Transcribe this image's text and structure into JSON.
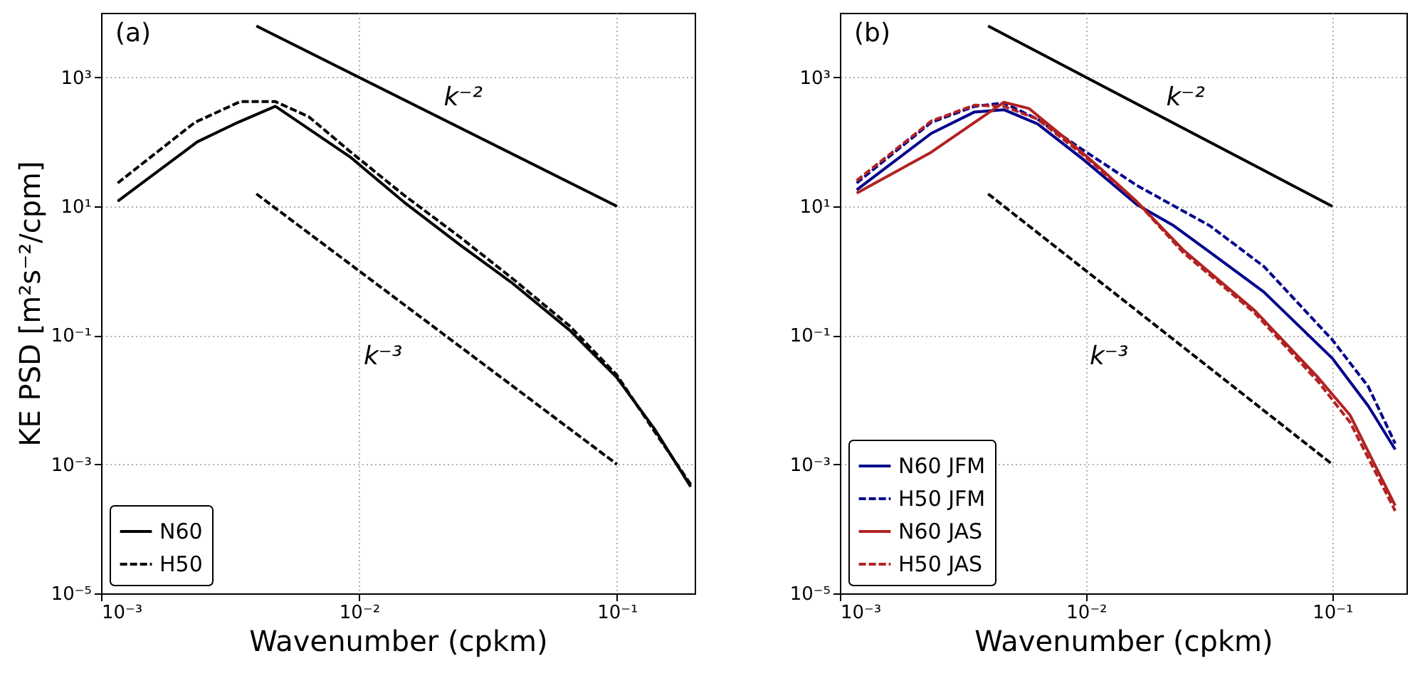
{
  "chart_data": [
    {
      "type": "line",
      "xlabel": "Wavenumber (cpkm)",
      "ylabel": "KE PSD [m²s⁻²/cpm]",
      "log": "xy",
      "grid": true,
      "legend": "bottom left",
      "xlim": [
        0.001,
        0.2
      ],
      "xticks": [
        {
          "value": 0.001,
          "label": "10⁻³"
        },
        {
          "value": 0.01,
          "label": "10⁻²"
        },
        {
          "value": 0.1,
          "label": "10⁻¹"
        }
      ],
      "ylim": [
        1e-05,
        10000
      ],
      "yticks": [
        {
          "value": 1e-05,
          "label": "10⁻⁵"
        },
        {
          "value": 0.001,
          "label": "10⁻³"
        },
        {
          "value": 0.1,
          "label": "10⁻¹"
        },
        {
          "value": 10,
          "label": "10¹"
        },
        {
          "value": 1000,
          "label": "10³"
        }
      ],
      "annotations": [
        "(a)",
        "k⁻²",
        "k⁻³"
      ],
      "series": [
        {
          "name": "N60",
          "color": "#000000",
          "line_style": "solid",
          "x": [
            0.00116,
            0.00236,
            0.00339,
            0.00474,
            0.0093,
            0.0149,
            0.0247,
            0.039,
            0.0655,
            0.1,
            0.14,
            0.193
          ],
          "values": [
            12,
            100,
            200,
            355,
            57,
            11.7,
            2.5,
            0.66,
            0.12,
            0.022,
            0.0035,
            0.00045
          ]
        },
        {
          "name": "H50",
          "color": "#000000",
          "line_style": "dashed",
          "x": [
            0.00116,
            0.00231,
            0.00346,
            0.00474,
            0.00638,
            0.0093,
            0.0149,
            0.0247,
            0.039,
            0.0655,
            0.1,
            0.14,
            0.193
          ],
          "values": [
            23,
            200,
            420,
            420,
            245,
            69,
            15,
            3.3,
            0.78,
            0.14,
            0.024,
            0.0032,
            0.00049
          ]
        },
        {
          "color": "#000000",
          "line_style": "solid",
          "x": [
            0.004,
            0.1
          ],
          "values": [
            6250,
            10
          ]
        },
        {
          "color": "#000000",
          "line_style": "dashed",
          "x": [
            0.004,
            0.1
          ],
          "values": [
            15.6,
            0.001
          ]
        }
      ]
    },
    {
      "type": "line",
      "xlabel": "Wavenumber (cpkm)",
      "log": "xy",
      "grid": true,
      "legend": "bottom left",
      "xlim": [
        0.001,
        0.2
      ],
      "xticks": [
        {
          "value": 0.001,
          "label": "10⁻³"
        },
        {
          "value": 0.01,
          "label": "10⁻²"
        },
        {
          "value": 0.1,
          "label": "10⁻¹"
        }
      ],
      "ylim": [
        1e-05,
        10000
      ],
      "yticks": [
        {
          "value": 1e-05,
          "label": "10⁻⁵"
        },
        {
          "value": 0.001,
          "label": "10⁻³"
        },
        {
          "value": 0.1,
          "label": "10⁻¹"
        },
        {
          "value": 10,
          "label": "10¹"
        },
        {
          "value": 1000,
          "label": "10³"
        }
      ],
      "annotations": [
        "(b)",
        "k⁻²",
        "k⁻³"
      ],
      "series": [
        {
          "name": "N60 JFM",
          "color": "#00008b",
          "line_style": "solid",
          "x": [
            0.00117,
            0.00235,
            0.00352,
            0.00463,
            0.00635,
            0.0097,
            0.0161,
            0.0227,
            0.0318,
            0.0527,
            0.1,
            0.14,
            0.18
          ],
          "values": [
            18,
            135,
            290,
            315,
            190,
            54,
            10.6,
            5,
            1.95,
            0.47,
            0.044,
            0.008,
            0.0017
          ]
        },
        {
          "name": "H50 JFM",
          "color": "#00008b",
          "line_style": "dashed",
          "x": [
            0.00117,
            0.00235,
            0.00352,
            0.00463,
            0.00635,
            0.0097,
            0.0161,
            0.0318,
            0.0527,
            0.1,
            0.14,
            0.18
          ],
          "values": [
            23,
            200,
            355,
            400,
            225,
            75,
            21,
            5,
            1.17,
            0.085,
            0.016,
            0.0021
          ]
        },
        {
          "name": "N60 JAS",
          "color": "#b22222",
          "line_style": "solid",
          "x": [
            0.00117,
            0.00235,
            0.00463,
            0.00585,
            0.0082,
            0.0115,
            0.0161,
            0.0247,
            0.0485,
            0.0877,
            0.118,
            0.18
          ],
          "values": [
            16,
            69,
            410,
            330,
            115,
            38,
            11.7,
            2.14,
            0.24,
            0.022,
            0.0058,
            0.00023
          ]
        },
        {
          "name": "H50 JAS",
          "color": "#b22222",
          "line_style": "dashed",
          "x": [
            0.00117,
            0.00235,
            0.00352,
            0.00463,
            0.00635,
            0.0097,
            0.0161,
            0.0247,
            0.0485,
            0.0877,
            0.118,
            0.18
          ],
          "values": [
            25,
            210,
            370,
            355,
            225,
            63,
            11.7,
            1.95,
            0.22,
            0.019,
            0.0045,
            0.00019
          ]
        },
        {
          "color": "#000000",
          "line_style": "solid",
          "x": [
            0.004,
            0.1
          ],
          "values": [
            6250,
            10
          ]
        },
        {
          "color": "#000000",
          "line_style": "dashed",
          "x": [
            0.004,
            0.1
          ],
          "values": [
            15.6,
            0.001
          ]
        }
      ]
    }
  ]
}
